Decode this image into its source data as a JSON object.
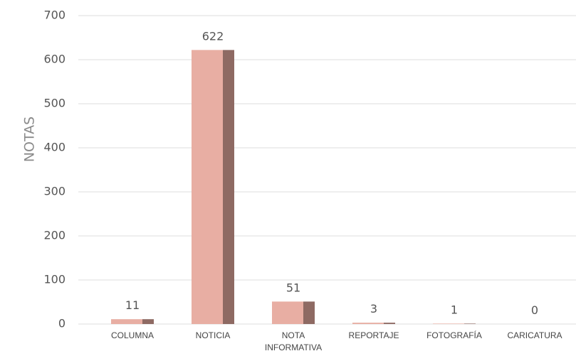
{
  "chart_data": {
    "type": "bar",
    "categories": [
      "COLUMNA",
      "NOTICIA",
      "NOTA INFORMATIVA",
      "REPORTAJE",
      "FOTOGRAFÍA",
      "CARICATURA"
    ],
    "category_lines": [
      [
        "COLUMNA"
      ],
      [
        "NOTICIA"
      ],
      [
        "NOTA",
        "INFORMATIVA"
      ],
      [
        "REPORTAJE"
      ],
      [
        "FOTOGRAFÍA"
      ],
      [
        "CARICATURA"
      ]
    ],
    "values": [
      11,
      622,
      51,
      3,
      1,
      0
    ],
    "data_labels": [
      "11",
      "622",
      "51",
      "3",
      "1",
      "0"
    ],
    "title": "",
    "xlabel": "",
    "ylabel": "NOTAS",
    "ylim": [
      0,
      700
    ],
    "yticks": [
      0,
      100,
      200,
      300,
      400,
      500,
      600,
      700
    ],
    "grid": true,
    "legend": "none",
    "colors": {
      "bar_face": "#e8aea3",
      "bar_side": "#8e6a63",
      "grid": "#dcdcdc"
    }
  }
}
